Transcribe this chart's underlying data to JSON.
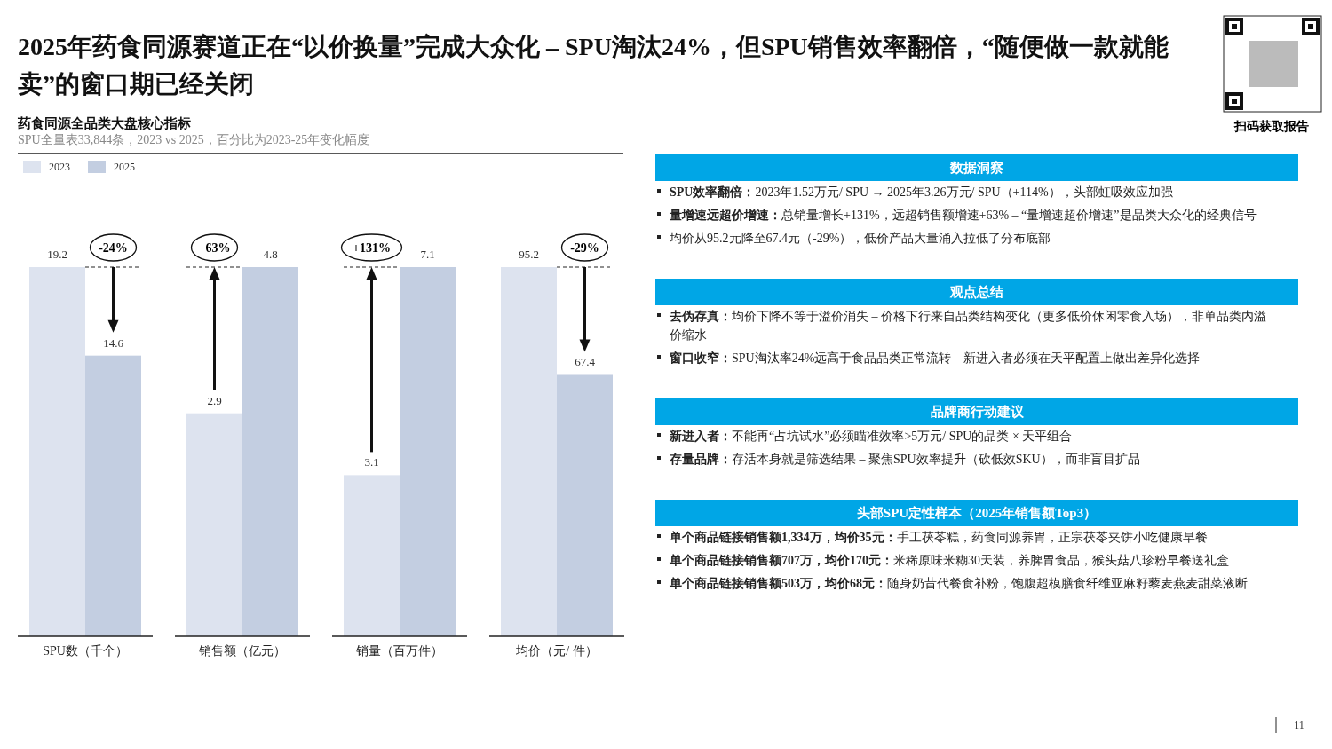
{
  "chart_data": [
    {
      "type": "bar",
      "title": "2025年药食同源赛道正在“以价换量”完成大众化 – SPU淘汰24%，但SPU销售效率翻倍，“随便做一款就能卖”的窗口期已经关闭",
      "subtitle": "药食同源全品类大盘核心指标",
      "annotations": [
        "SPU全量表33,844条，2023 vs 2025，百分比为2023-25年变化幅度",
        "-24%"
      ],
      "categories": [
        "2023",
        "2025"
      ],
      "tick_labels": false,
      "xlabel": "SPU数（千个）",
      "data_labels": true,
      "values": [
        19.2,
        14.6
      ],
      "colors": [
        "#dde3ef",
        "#c3cee1"
      ]
    },
    {
      "type": "bar",
      "annotations": [
        "+63%"
      ],
      "categories": [
        null,
        null
      ],
      "xlabel": "销售额（亿元）",
      "data_labels": true,
      "values": [
        2.9,
        4.8
      ],
      "colors": [
        "#dde3ef",
        "#c3cee1"
      ]
    },
    {
      "type": "bar",
      "annotations": [
        "+131%"
      ],
      "categories": [
        null,
        null
      ],
      "xlabel": "销量（百万件）",
      "data_labels": true,
      "values": [
        3.1,
        7.1
      ],
      "colors": [
        "#dde3ef",
        "#c3cee1"
      ]
    },
    {
      "type": "bar",
      "annotations": [
        "-29%"
      ],
      "categories": [
        null,
        null
      ],
      "xlabel": "均价（元/ 件）",
      "data_labels": true,
      "values": [
        95.2,
        67.4
      ],
      "colors": [
        "#dde3ef",
        "#c3cee1"
      ]
    },
    {
      "type": "other",
      "title": "数据洞察",
      "annotations": [
        "SPU效率翻倍：2023年1.52万元/ SPU → 2025年3.26万元/ SPU（+114%），头部虹吸效应加强",
        "量增速远超价增速：总销量增长+131%，远超销售额增速+63% – “量增速超价增速”是品类大众化的经典信号",
        "均价从95.2元降至67.4元（-29%），低价产品大量涌入拉低了分布底部"
      ]
    },
    {
      "type": "other",
      "title": "观点总结",
      "annotations": [
        "去伪存真：均价下降不等于溢价消失 – 价格下行来自品类结构变化（更多低价休闲零食入场），非单品类内溢价缩水",
        "窗口收窄：SPU淘汰率24%远高于食品品类正常流转 – 新进入者必须在天平配置上做出差异化选择"
      ]
    },
    {
      "type": "other",
      "title": "品牌商行动建议",
      "annotations": [
        "新进入者：不能再“占坑试水”必须瞄准效率>5万元/ SPU的品类 × 天平组合",
        "存量品牌：存活本身就是筛选结果 – 聚焦SPU效率提升（砍低效SKU），而非盲目扩品"
      ]
    },
    {
      "type": "other",
      "title": "头部SPU定性样本（2025年销售额Top3）",
      "annotations": [
        "单个商品链接销售额1,334万，均价35元：手工茯苓糕，药食同源养胃，正宗茯苓夹饼小吃健康早餐",
        "单个商品链接销售额707万，均价170元：米稀原味米糊30天装，养脾胃食品，猴头菇八珍粉早餐送礼盒",
        "单个商品链接销售额503万，均价68元：随身奶昔代餐食补粉，饱腹超模膳食纤维亚麻籽藜麦燕麦甜菜液断"
      ]
    },
    {
      "type": "other",
      "annotations": [
        "扫码获取报告",
        "11"
      ]
    }
  ]
}
